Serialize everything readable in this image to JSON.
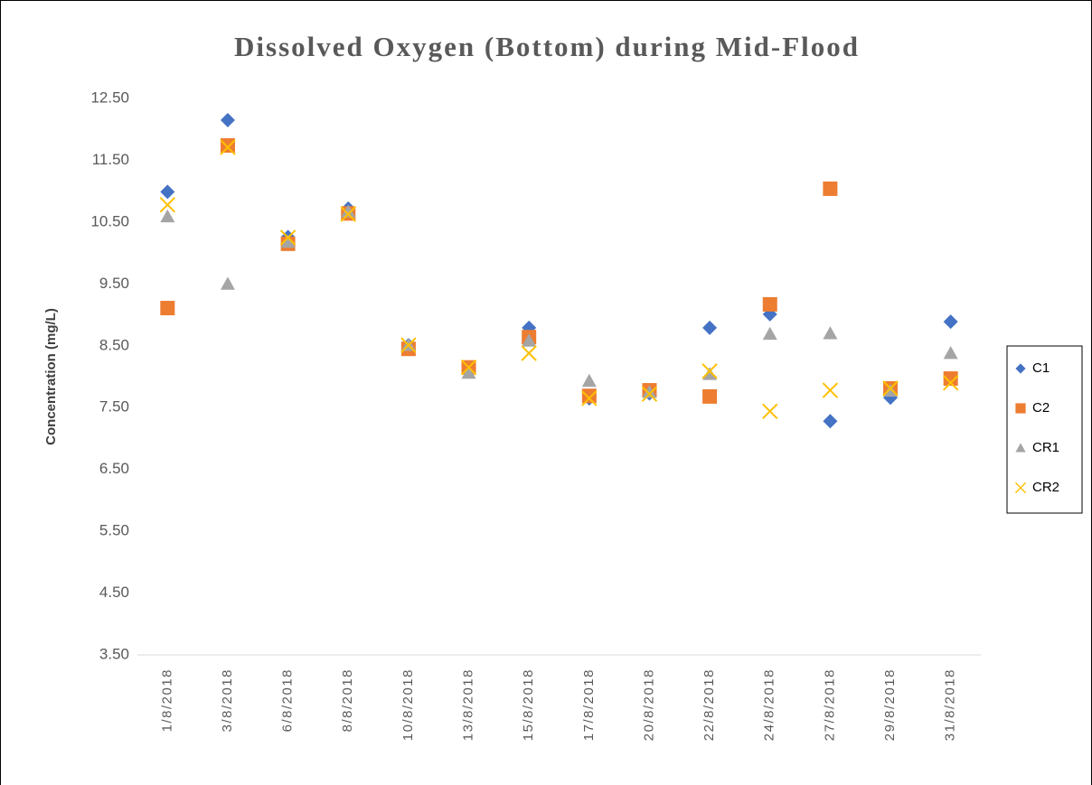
{
  "chart_data": {
    "type": "scatter",
    "title": "Dissolved Oxygen (Bottom) during Mid-Flood",
    "y_label": "Concentration (mg/L)",
    "categories": [
      "1/8/2018",
      "3/8/2018",
      "6/8/2018",
      "8/8/2018",
      "10/8/2018",
      "13/8/2018",
      "15/8/2018",
      "17/8/2018",
      "20/8/2018",
      "22/8/2018",
      "24/8/2018",
      "27/8/2018",
      "29/8/2018",
      "31/8/2018"
    ],
    "ylim": [
      3.5,
      12.5
    ],
    "yticks": [
      {
        "value": 3.5,
        "label": "3.50"
      },
      {
        "value": 4.5,
        "label": "4.50"
      },
      {
        "value": 5.5,
        "label": "5.50"
      },
      {
        "value": 6.5,
        "label": "6.50"
      },
      {
        "value": 7.5,
        "label": "7.50"
      },
      {
        "value": 8.5,
        "label": "8.50"
      },
      {
        "value": 9.5,
        "label": "9.50"
      },
      {
        "value": 10.5,
        "label": "10.50"
      },
      {
        "value": 11.5,
        "label": "11.50"
      },
      {
        "value": 12.5,
        "label": "12.50"
      }
    ],
    "grid": false,
    "legend": "right",
    "series": [
      {
        "name": "C1",
        "color": "#4472c4",
        "marker": "diamond",
        "values": [
          10.99,
          12.15,
          10.26,
          10.72,
          8.51,
          8.15,
          8.79,
          7.65,
          7.73,
          8.79,
          9.01,
          7.28,
          7.66,
          8.89
        ]
      },
      {
        "name": "C2",
        "color": "#ed7d31",
        "marker": "square",
        "values": [
          9.11,
          11.74,
          10.15,
          10.64,
          8.45,
          8.15,
          8.64,
          7.69,
          7.78,
          7.68,
          9.17,
          11.04,
          7.81,
          7.97
        ]
      },
      {
        "name": "CR1",
        "color": "#a5a5a5",
        "marker": "triangle",
        "values": [
          10.59,
          9.5,
          10.18,
          10.67,
          8.51,
          8.06,
          8.58,
          7.93,
          7.75,
          8.04,
          8.69,
          8.7,
          7.77,
          8.38
        ]
      },
      {
        "name": "CR2",
        "color": "#ffc000",
        "marker": "x",
        "values": [
          10.78,
          11.71,
          10.25,
          10.63,
          8.51,
          8.15,
          8.38,
          7.65,
          7.72,
          8.09,
          7.44,
          7.78,
          7.81,
          7.9
        ]
      }
    ]
  }
}
